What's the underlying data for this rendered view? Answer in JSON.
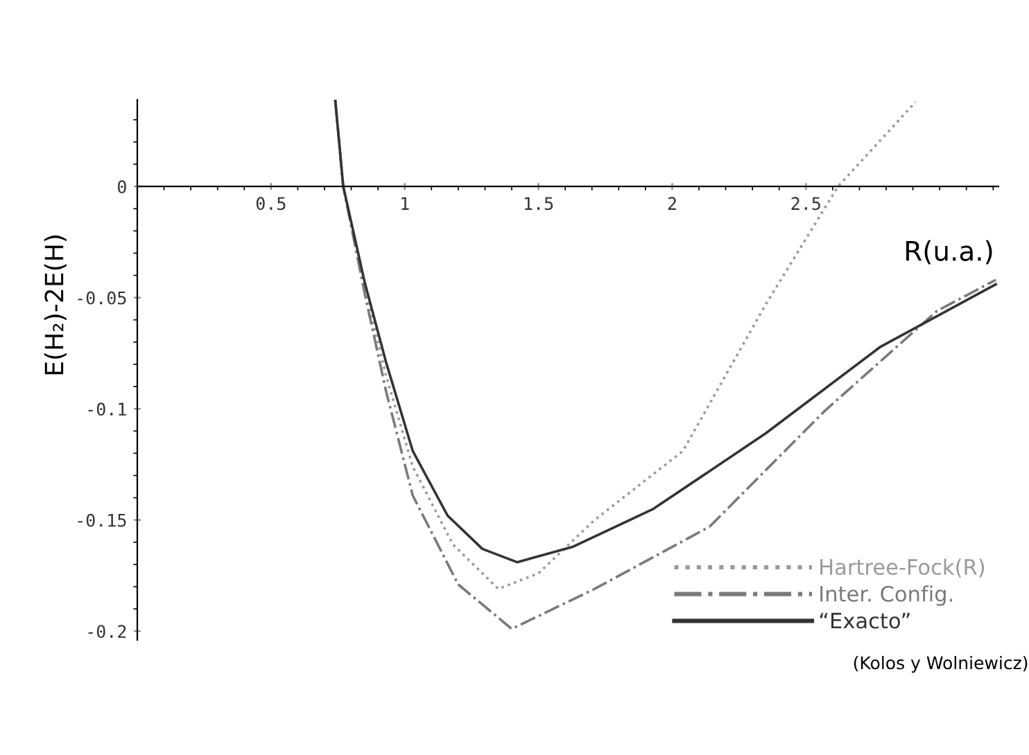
{
  "chart_data": {
    "type": "line",
    "xlabel": "R(u.a.)",
    "ylabel": "E(H₂)-2E(H)",
    "xlim": [
      0,
      3.22
    ],
    "ylim": [
      -0.204,
      0.039
    ],
    "xticks": [
      0.5,
      1,
      1.5,
      2,
      2.5
    ],
    "yticks": [
      -0.2,
      -0.15,
      -0.1,
      -0.05,
      0
    ],
    "grid": false,
    "legend": "bottom right",
    "marker": "none",
    "series": [
      {
        "name": "Hartree-Fock(R)",
        "color": "#9a9a9a",
        "line_style": "dotted",
        "x": [
          0.74,
          0.77,
          0.85,
          0.93,
          1.03,
          1.18,
          1.35,
          1.5,
          1.71,
          2.04,
          2.35,
          2.62,
          2.91
        ],
        "values": [
          0.039,
          0.0,
          -0.045,
          -0.085,
          -0.126,
          -0.161,
          -0.181,
          -0.174,
          -0.15,
          -0.119,
          -0.053,
          0.0,
          0.038
        ]
      },
      {
        "name": "Inter. Config.",
        "color": "#7a7a7a",
        "line_style": "dashdot",
        "x": [
          0.74,
          0.77,
          0.85,
          0.93,
          1.03,
          1.2,
          1.4,
          1.71,
          2.14,
          2.57,
          2.99,
          3.21
        ],
        "values": [
          0.039,
          0.0,
          -0.048,
          -0.092,
          -0.139,
          -0.179,
          -0.199,
          -0.181,
          -0.153,
          -0.101,
          -0.056,
          -0.042
        ]
      },
      {
        "name": "“Exacto”",
        "color": "#333333",
        "line_style": "solid",
        "x": [
          0.74,
          0.77,
          0.85,
          0.93,
          1.03,
          1.16,
          1.29,
          1.42,
          1.63,
          1.93,
          2.35,
          2.78,
          3.21
        ],
        "values": [
          0.039,
          0.0,
          -0.043,
          -0.079,
          -0.119,
          -0.148,
          -0.163,
          -0.169,
          -0.162,
          -0.145,
          -0.111,
          -0.072,
          -0.044
        ]
      }
    ],
    "annotations": [
      "(Kolos y Wolniewicz)"
    ]
  }
}
